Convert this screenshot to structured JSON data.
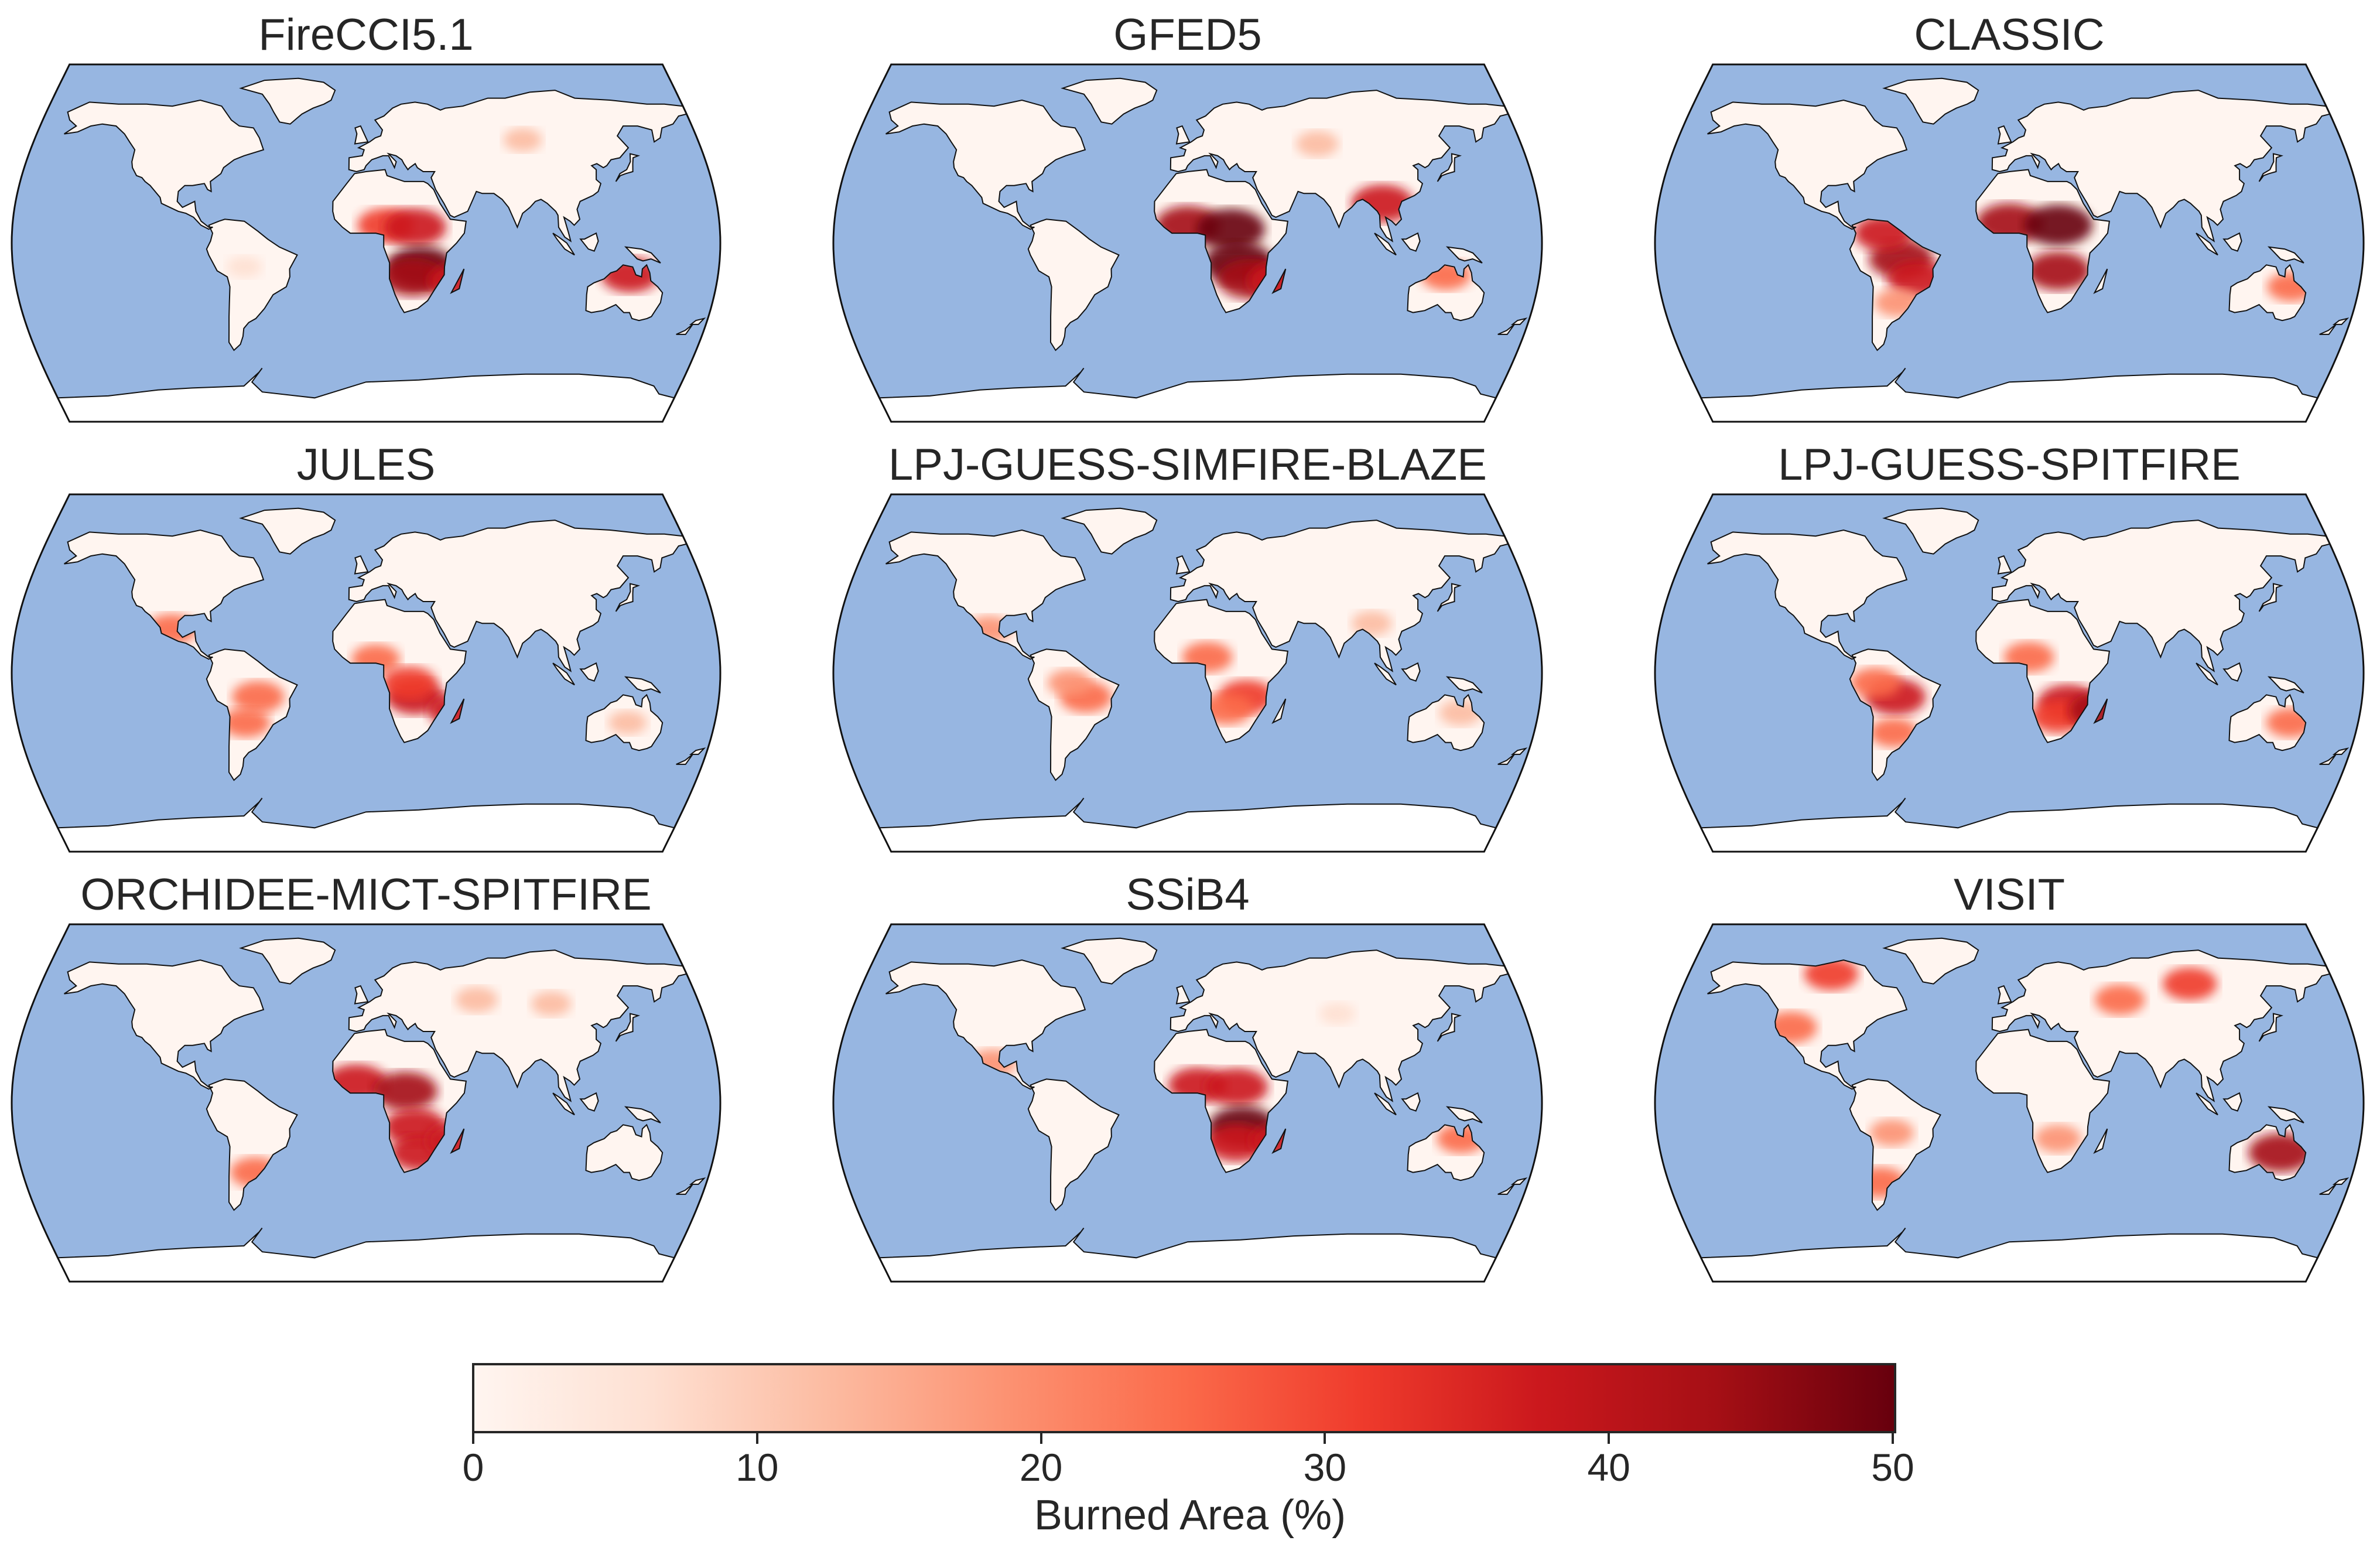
{
  "panels": [
    {
      "title": "FireCCI5.1",
      "hotspots": [
        {
          "lon": 10,
          "lat": 9,
          "level": 0.65
        },
        {
          "lon": 25,
          "lat": 8,
          "level": 0.8
        },
        {
          "lon": 28,
          "lat": -12,
          "level": 0.95
        },
        {
          "lon": 24,
          "lat": -17,
          "level": 0.85
        },
        {
          "lon": 47,
          "lat": -19,
          "level": 0.7
        },
        {
          "lon": 135,
          "lat": -16,
          "level": 0.7
        },
        {
          "lon": 85,
          "lat": 52,
          "level": 0.2
        },
        {
          "lon": -62,
          "lat": -12,
          "level": 0.12
        }
      ]
    },
    {
      "title": "GFED5",
      "hotspots": [
        {
          "lon": 0,
          "lat": 9,
          "level": 0.85
        },
        {
          "lon": 22,
          "lat": 7,
          "level": 0.95
        },
        {
          "lon": 26,
          "lat": -10,
          "level": 1.0
        },
        {
          "lon": 32,
          "lat": -18,
          "level": 0.9
        },
        {
          "lon": 47,
          "lat": -19,
          "level": 0.8
        },
        {
          "lon": 100,
          "lat": 20,
          "level": 0.8
        },
        {
          "lon": 132,
          "lat": -16,
          "level": 0.5
        },
        {
          "lon": 70,
          "lat": 50,
          "level": 0.3
        }
      ]
    },
    {
      "title": "CLASSIC",
      "hotspots": [
        {
          "lon": 0,
          "lat": 10,
          "level": 0.9
        },
        {
          "lon": 25,
          "lat": 9,
          "level": 0.95
        },
        {
          "lon": 25,
          "lat": -14,
          "level": 0.85
        },
        {
          "lon": -55,
          "lat": -8,
          "level": 0.85
        },
        {
          "lon": -47,
          "lat": -18,
          "level": 0.75
        },
        {
          "lon": -64,
          "lat": 5,
          "level": 0.7
        },
        {
          "lon": -58,
          "lat": -30,
          "level": 0.4
        },
        {
          "lon": 145,
          "lat": -22,
          "level": 0.45
        }
      ]
    },
    {
      "title": "JULES",
      "hotspots": [
        {
          "lon": 5,
          "lat": 7,
          "level": 0.45
        },
        {
          "lon": 25,
          "lat": -12,
          "level": 0.7
        },
        {
          "lon": 22,
          "lat": -5,
          "level": 0.6
        },
        {
          "lon": -55,
          "lat": -12,
          "level": 0.55
        },
        {
          "lon": -62,
          "lat": -25,
          "level": 0.45
        },
        {
          "lon": -100,
          "lat": 22,
          "level": 0.5
        },
        {
          "lon": 47,
          "lat": -19,
          "level": 0.7
        },
        {
          "lon": 135,
          "lat": -25,
          "level": 0.2
        }
      ]
    },
    {
      "title": "LPJ-GUESS-SIMFIRE-BLAZE",
      "hotspots": [
        {
          "lon": 10,
          "lat": 8,
          "level": 0.5
        },
        {
          "lon": 30,
          "lat": -12,
          "level": 0.65
        },
        {
          "lon": 20,
          "lat": -18,
          "level": 0.55
        },
        {
          "lon": -52,
          "lat": -12,
          "level": 0.55
        },
        {
          "lon": -60,
          "lat": -5,
          "level": 0.35
        },
        {
          "lon": -102,
          "lat": 22,
          "level": 0.35
        },
        {
          "lon": 140,
          "lat": -20,
          "level": 0.3
        },
        {
          "lon": 95,
          "lat": 25,
          "level": 0.25
        }
      ]
    },
    {
      "title": "LPJ-GUESS-SPITFIRE",
      "hotspots": [
        {
          "lon": 10,
          "lat": 8,
          "level": 0.5
        },
        {
          "lon": 30,
          "lat": -15,
          "level": 0.75
        },
        {
          "lon": 25,
          "lat": -22,
          "level": 0.6
        },
        {
          "lon": -58,
          "lat": -12,
          "level": 0.75
        },
        {
          "lon": -68,
          "lat": -5,
          "level": 0.5
        },
        {
          "lon": -60,
          "lat": -30,
          "level": 0.45
        },
        {
          "lon": 47,
          "lat": -19,
          "level": 0.85
        },
        {
          "lon": 145,
          "lat": -25,
          "level": 0.45
        }
      ]
    },
    {
      "title": "ORCHIDEE-MICT-SPITFIRE",
      "hotspots": [
        {
          "lon": -5,
          "lat": 10,
          "level": 0.8
        },
        {
          "lon": 20,
          "lat": 6,
          "level": 0.85
        },
        {
          "lon": 25,
          "lat": -12,
          "level": 0.8
        },
        {
          "lon": 28,
          "lat": -25,
          "level": 0.75
        },
        {
          "lon": 47,
          "lat": -19,
          "level": 0.8
        },
        {
          "lon": -58,
          "lat": -35,
          "level": 0.5
        },
        {
          "lon": 60,
          "lat": 52,
          "level": 0.3
        },
        {
          "lon": 100,
          "lat": 50,
          "level": 0.25
        }
      ]
    },
    {
      "title": "SSiB4",
      "hotspots": [
        {
          "lon": 5,
          "lat": 9,
          "level": 0.7
        },
        {
          "lon": 25,
          "lat": 8,
          "level": 0.8
        },
        {
          "lon": 28,
          "lat": -12,
          "level": 0.95
        },
        {
          "lon": 25,
          "lat": -20,
          "level": 0.8
        },
        {
          "lon": 47,
          "lat": -19,
          "level": 0.7
        },
        {
          "lon": 140,
          "lat": -18,
          "level": 0.45
        },
        {
          "lon": -100,
          "lat": 20,
          "level": 0.4
        },
        {
          "lon": 80,
          "lat": 45,
          "level": 0.15
        }
      ]
    },
    {
      "title": "VISIT",
      "hotspots": [
        {
          "lon": -115,
          "lat": 38,
          "level": 0.55
        },
        {
          "lon": -100,
          "lat": 65,
          "level": 0.6
        },
        {
          "lon": 100,
          "lat": 60,
          "level": 0.6
        },
        {
          "lon": 60,
          "lat": 52,
          "level": 0.5
        },
        {
          "lon": 140,
          "lat": -25,
          "level": 0.85
        },
        {
          "lon": 25,
          "lat": -18,
          "level": 0.4
        },
        {
          "lon": -60,
          "lat": -15,
          "level": 0.35
        },
        {
          "lon": -68,
          "lat": -40,
          "level": 0.5
        }
      ]
    }
  ],
  "colorbar": {
    "label": "Burned Area (%)",
    "min": 0,
    "max": 50,
    "ticks": [
      "0",
      "10",
      "20",
      "30",
      "40",
      "50"
    ],
    "colormap": [
      "#fff5f0",
      "#fee0d2",
      "#fcbba1",
      "#fc9272",
      "#fb6a4a",
      "#ef3b2c",
      "#cb181d",
      "#a50f15",
      "#67000d"
    ]
  },
  "colors": {
    "ocean": "#97b6e1",
    "land": "#fff5f0",
    "antarctica": "#ffffff",
    "coastline": "#111111"
  }
}
